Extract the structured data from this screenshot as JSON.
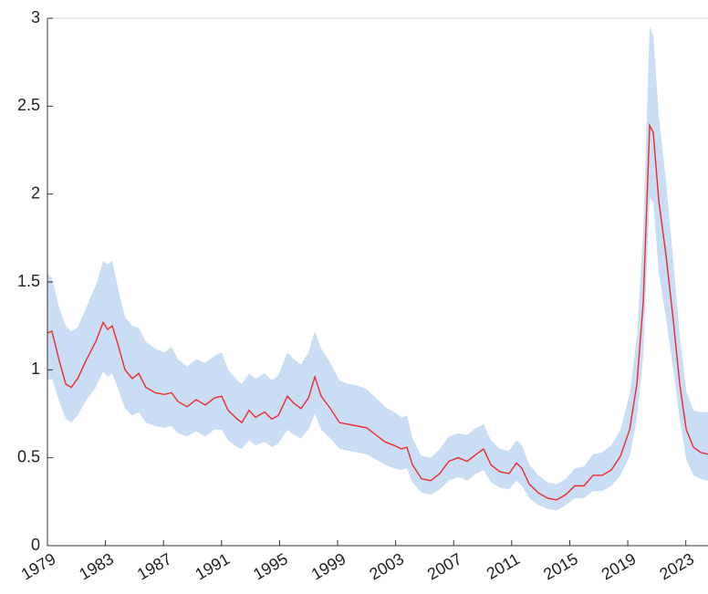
{
  "chart_data": {
    "type": "line",
    "x": [
      1979.0,
      1979.31,
      1979.82,
      1980.26,
      1980.64,
      1981.08,
      1981.7,
      1982.33,
      1982.84,
      1983.15,
      1983.47,
      1983.91,
      1984.35,
      1984.85,
      1985.29,
      1985.79,
      1986.42,
      1987.05,
      1987.55,
      1988.0,
      1988.62,
      1989.25,
      1989.88,
      1990.51,
      1991.01,
      1991.45,
      1992.08,
      1992.4,
      1992.9,
      1993.34,
      1993.97,
      1994.47,
      1994.91,
      1995.54,
      1995.98,
      1996.48,
      1996.99,
      1997.43,
      1997.87,
      1998.5,
      1999.13,
      1999.75,
      2000.38,
      2001.01,
      2001.64,
      2002.27,
      2002.9,
      2003.4,
      2003.78,
      2004.16,
      2004.79,
      2005.42,
      2006.04,
      2006.67,
      2007.3,
      2007.93,
      2008.56,
      2009.06,
      2009.57,
      2010.19,
      2010.82,
      2011.33,
      2011.7,
      2012.21,
      2012.84,
      2013.47,
      2014.09,
      2014.72,
      2015.35,
      2015.98,
      2016.61,
      2017.24,
      2017.87,
      2018.5,
      2019.13,
      2019.63,
      2020.07,
      2020.51,
      2020.76,
      2021.14,
      2021.64,
      2022.14,
      2022.58,
      2023.03,
      2023.53,
      2024.03,
      2024.53
    ],
    "series": [
      {
        "color": "#ee2a2a",
        "values": [
          1.21,
          1.22,
          1.05,
          0.92,
          0.9,
          0.95,
          1.06,
          1.16,
          1.27,
          1.23,
          1.25,
          1.13,
          1.0,
          0.95,
          0.98,
          0.9,
          0.87,
          0.86,
          0.87,
          0.82,
          0.79,
          0.83,
          0.8,
          0.84,
          0.85,
          0.77,
          0.72,
          0.7,
          0.77,
          0.73,
          0.76,
          0.72,
          0.74,
          0.85,
          0.81,
          0.78,
          0.84,
          0.96,
          0.85,
          0.78,
          0.7,
          0.69,
          0.68,
          0.67,
          0.63,
          0.59,
          0.57,
          0.55,
          0.56,
          0.46,
          0.38,
          0.37,
          0.41,
          0.48,
          0.5,
          0.48,
          0.52,
          0.55,
          0.46,
          0.42,
          0.41,
          0.47,
          0.44,
          0.35,
          0.3,
          0.27,
          0.26,
          0.29,
          0.34,
          0.34,
          0.4,
          0.4,
          0.43,
          0.51,
          0.66,
          0.92,
          1.39,
          2.39,
          2.35,
          1.96,
          1.65,
          1.28,
          0.92,
          0.66,
          0.56,
          0.53,
          0.52
        ]
      }
    ],
    "band": {
      "color": "#c9ddf5",
      "lower": [
        0.94,
        0.95,
        0.82,
        0.72,
        0.7,
        0.74,
        0.83,
        0.9,
        0.99,
        0.96,
        0.98,
        0.88,
        0.78,
        0.74,
        0.76,
        0.7,
        0.68,
        0.67,
        0.68,
        0.64,
        0.62,
        0.65,
        0.62,
        0.66,
        0.66,
        0.6,
        0.56,
        0.55,
        0.6,
        0.57,
        0.59,
        0.56,
        0.58,
        0.66,
        0.63,
        0.61,
        0.66,
        0.75,
        0.66,
        0.61,
        0.55,
        0.54,
        0.53,
        0.52,
        0.49,
        0.46,
        0.44,
        0.43,
        0.44,
        0.36,
        0.3,
        0.29,
        0.32,
        0.37,
        0.39,
        0.37,
        0.41,
        0.43,
        0.36,
        0.33,
        0.32,
        0.37,
        0.34,
        0.27,
        0.23,
        0.21,
        0.2,
        0.23,
        0.27,
        0.27,
        0.31,
        0.31,
        0.34,
        0.4,
        0.51,
        0.72,
        1.08,
        1.98,
        1.95,
        1.55,
        1.29,
        1.0,
        0.72,
        0.49,
        0.4,
        0.38,
        0.37
      ],
      "upper": [
        1.55,
        1.52,
        1.35,
        1.25,
        1.22,
        1.24,
        1.36,
        1.48,
        1.62,
        1.6,
        1.62,
        1.45,
        1.3,
        1.25,
        1.24,
        1.16,
        1.12,
        1.1,
        1.13,
        1.06,
        1.02,
        1.06,
        1.04,
        1.08,
        1.1,
        1.0,
        0.94,
        0.92,
        0.98,
        0.95,
        0.98,
        0.94,
        0.97,
        1.1,
        1.06,
        1.03,
        1.1,
        1.22,
        1.12,
        1.04,
        0.94,
        0.92,
        0.91,
        0.89,
        0.84,
        0.79,
        0.76,
        0.73,
        0.74,
        0.61,
        0.51,
        0.5,
        0.55,
        0.62,
        0.64,
        0.63,
        0.67,
        0.69,
        0.6,
        0.55,
        0.54,
        0.6,
        0.57,
        0.46,
        0.4,
        0.36,
        0.35,
        0.38,
        0.44,
        0.45,
        0.52,
        0.53,
        0.57,
        0.66,
        0.86,
        1.19,
        1.8,
        2.95,
        2.9,
        2.45,
        2.07,
        1.62,
        1.2,
        0.88,
        0.77,
        0.76,
        0.76
      ]
    },
    "xlim": [
      1979,
      2024.53
    ],
    "xticks": [
      1979,
      1983,
      1987,
      1991,
      1995,
      1999,
      2003,
      2007,
      2011,
      2015,
      2019,
      2023
    ],
    "ylim": [
      0,
      3
    ],
    "yticks": [
      0,
      0.5,
      1,
      1.5,
      2,
      2.5,
      3
    ]
  }
}
